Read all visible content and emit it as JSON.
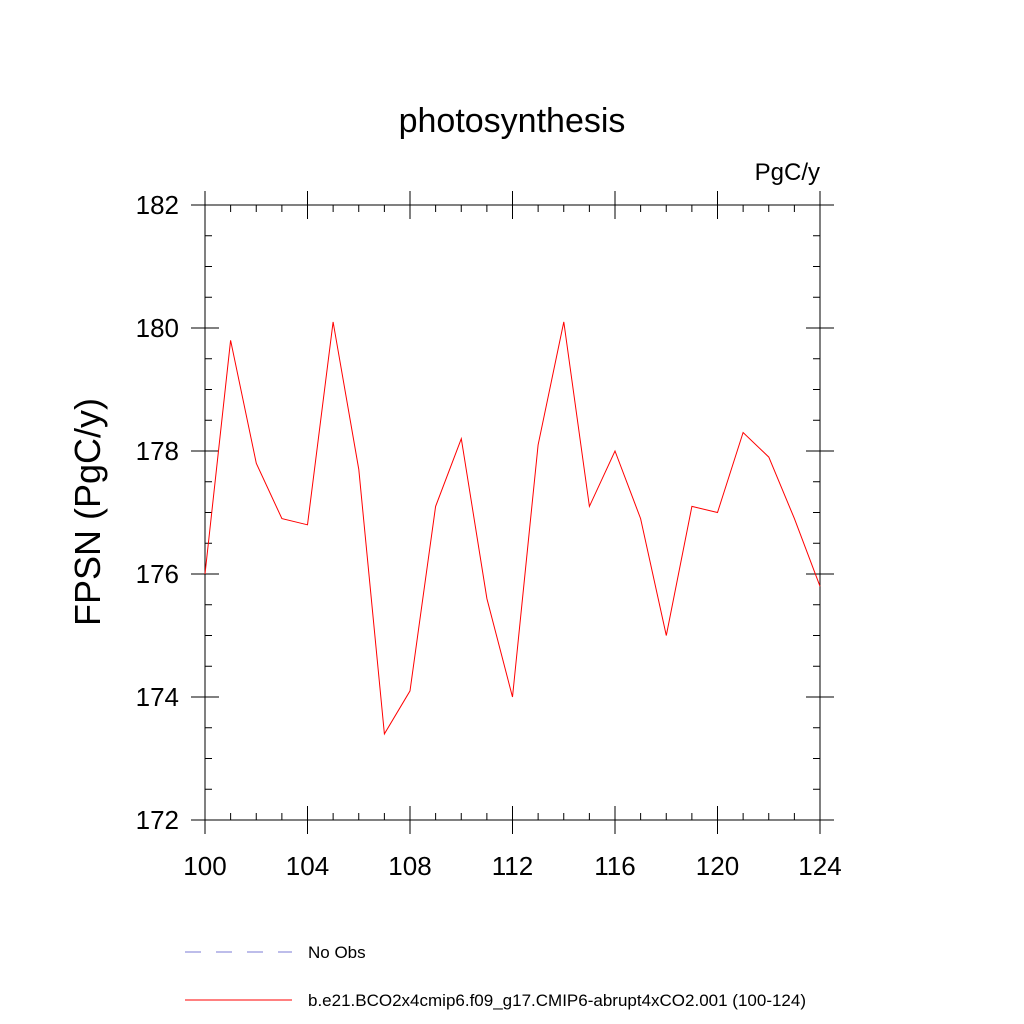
{
  "chart_data": {
    "type": "line",
    "title": "photosynthesis",
    "units_label": "PgC/y",
    "ylabel": "FPSN  (PgC/y)",
    "xlabel": "",
    "xlim": [
      100,
      124
    ],
    "ylim": [
      172,
      182
    ],
    "x_ticks": [
      100,
      104,
      108,
      112,
      116,
      120,
      124
    ],
    "y_ticks": [
      172,
      174,
      176,
      178,
      180,
      182
    ],
    "grid": false,
    "legend_position": "bottom",
    "x": [
      100,
      101,
      102,
      103,
      104,
      105,
      106,
      107,
      108,
      109,
      110,
      111,
      112,
      113,
      114,
      115,
      116,
      117,
      118,
      119,
      120,
      121,
      122,
      123,
      124
    ],
    "series": [
      {
        "name": "b.e21.BCO2x4cmip6.f09_g17.CMIP6-abrupt4xCO2.001 (100-124)",
        "color": "#ff0000",
        "dash": "solid",
        "values": [
          176.0,
          179.8,
          177.8,
          176.9,
          176.8,
          180.1,
          177.7,
          173.4,
          174.1,
          177.1,
          178.2,
          175.6,
          174.0,
          178.1,
          180.1,
          177.1,
          178.0,
          176.9,
          175.0,
          177.1,
          177.0,
          178.3,
          177.9,
          176.9,
          175.8
        ]
      }
    ],
    "legend": [
      {
        "label": "No Obs",
        "color": "#7b7bd6",
        "dash": "dashed"
      },
      {
        "label": "b.e21.BCO2x4cmip6.f09_g17.CMIP6-abrupt4xCO2.001 (100-124)",
        "color": "#ff0000",
        "dash": "solid"
      }
    ]
  }
}
